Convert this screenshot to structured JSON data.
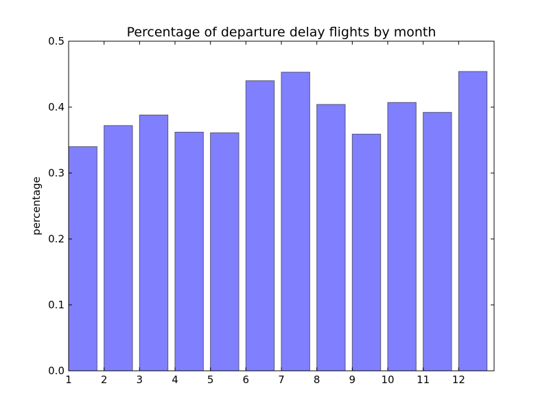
{
  "chart_data": {
    "type": "bar",
    "title": "Percentage of departure delay flights by month",
    "xlabel": "",
    "ylabel": "percentage",
    "categories": [
      "1",
      "2",
      "3",
      "4",
      "5",
      "6",
      "7",
      "8",
      "9",
      "10",
      "11",
      "12"
    ],
    "values": [
      0.34,
      0.372,
      0.388,
      0.362,
      0.361,
      0.44,
      0.453,
      0.404,
      0.359,
      0.407,
      0.392,
      0.454
    ],
    "ylim": [
      0,
      0.5
    ],
    "xlim": [
      1,
      13
    ],
    "yticks": [
      "0.0",
      "0.1",
      "0.2",
      "0.3",
      "0.4",
      "0.5"
    ],
    "ytick_values": [
      0,
      0.1,
      0.2,
      0.3,
      0.4,
      0.5
    ],
    "bar_color": "#8080ff",
    "bar_edge_color": "#555577",
    "grid": false,
    "legend": "none"
  }
}
